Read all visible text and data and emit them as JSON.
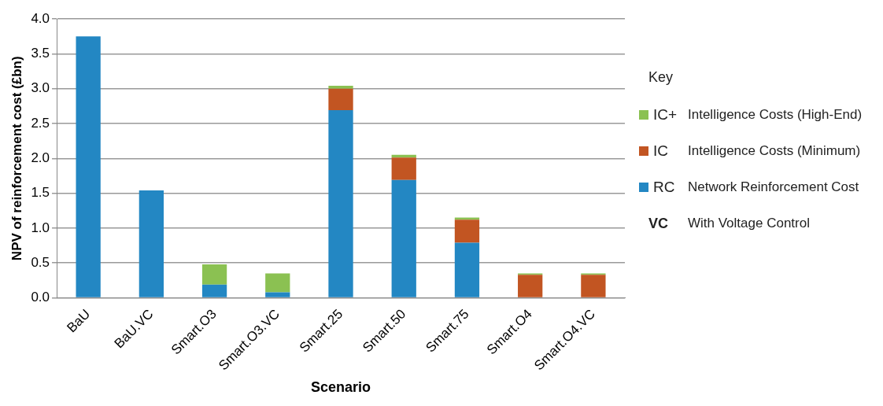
{
  "chart_data": {
    "type": "bar",
    "stacked": true,
    "xlabel": "Scenario",
    "ylabel": "NPV of reinforcement cost (£bn)",
    "legend_title": "Key",
    "legend": "right",
    "grid": "y",
    "categories": [
      "BaU",
      "BaU.VC",
      "Smart.O3",
      "Smart.O3.VC",
      "Smart.25",
      "Smart.50",
      "Smart.75",
      "Smart.O4",
      "Smart.O4.VC"
    ],
    "ylim": [
      0,
      4
    ],
    "yticks": [
      {
        "value": 0,
        "label": "0.0"
      },
      0.5,
      {
        "value": 1,
        "label": "1.0"
      },
      1.5,
      {
        "value": 2,
        "label": "2.0"
      },
      2.5,
      {
        "value": 3,
        "label": "3.0"
      },
      3.5,
      {
        "value": 4,
        "label": "4.0"
      }
    ],
    "series": [
      {
        "name": "RC",
        "color": "#2387c3",
        "values": [
          3.75,
          1.54,
          0.19,
          0.08,
          2.69,
          1.69,
          0.79,
          0,
          0
        ]
      },
      {
        "name": "IC",
        "color": "#c25522",
        "values": [
          0,
          0,
          0,
          0,
          0.31,
          0.32,
          0.33,
          0.33,
          0.33
        ]
      },
      {
        "name": "IC+",
        "color": "#8bc152",
        "values": [
          0,
          0,
          0.29,
          0.27,
          0.04,
          0.04,
          0.03,
          0.02,
          0.02
        ]
      }
    ],
    "annotations": [
      "Network Reinforcement Cost",
      "Intelligence Costs (Minimum)",
      "Intelligence Costs (High-End)",
      "VC",
      "With Voltage Control"
    ]
  }
}
